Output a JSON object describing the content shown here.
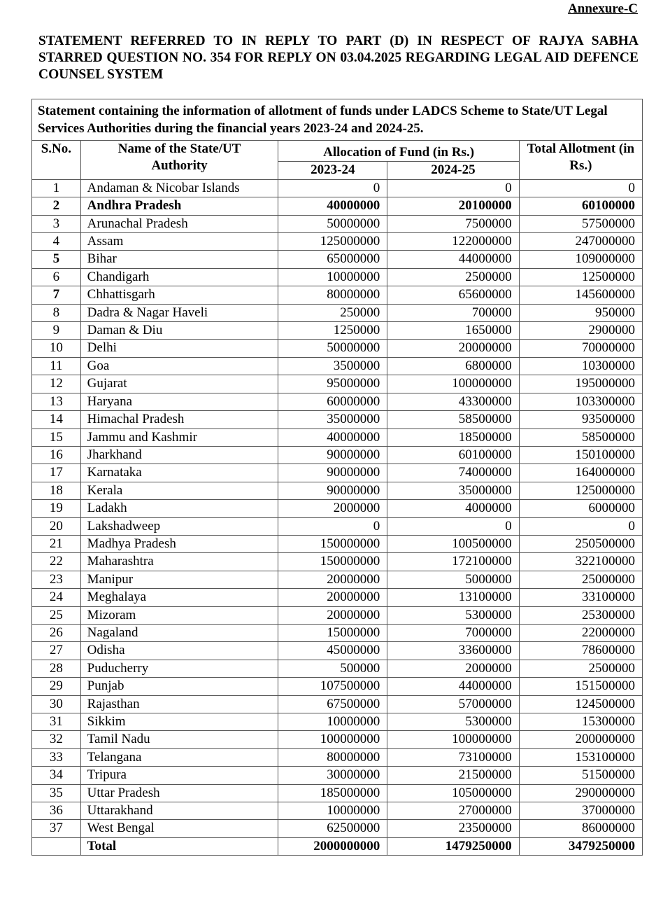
{
  "annexure": "Annexure-C",
  "title": "STATEMENT REFERRED TO IN REPLY TO PART (D) IN RESPECT OF RAJYA SABHA STARRED QUESTION NO. 354 FOR REPLY ON 03.04.2025 REGARDING LEGAL AID DEFENCE COUNSEL SYSTEM",
  "table": {
    "caption": "Statement containing the information of allotment of funds under LADCS Scheme to State/UT Legal Services Authorities during the financial years 2023-24 and 2024-25.",
    "headers": {
      "sno": "S.No.",
      "name": "Name of the State/UT Authority",
      "allocation": "Allocation of Fund (in Rs.)",
      "y1": "2023-24",
      "y2": "2024-25",
      "total": "Total Allotment (in Rs.)"
    },
    "rows": [
      [
        "1",
        "Andaman & Nicobar Islands",
        "0",
        "0",
        "0"
      ],
      [
        "2",
        "Andhra Pradesh",
        "40000000",
        "20100000",
        "60100000"
      ],
      [
        "3",
        "Arunachal Pradesh",
        "50000000",
        "7500000",
        "57500000"
      ],
      [
        "4",
        "Assam",
        "125000000",
        "122000000",
        "247000000"
      ],
      [
        "5",
        "Bihar",
        "65000000",
        "44000000",
        "109000000"
      ],
      [
        "6",
        "Chandigarh",
        "10000000",
        "2500000",
        "12500000"
      ],
      [
        "7",
        "Chhattisgarh",
        "80000000",
        "65600000",
        "145600000"
      ],
      [
        "8",
        "Dadra & Nagar Haveli",
        "250000",
        "700000",
        "950000"
      ],
      [
        "9",
        "Daman & Diu",
        "1250000",
        "1650000",
        "2900000"
      ],
      [
        "10",
        "Delhi",
        "50000000",
        "20000000",
        "70000000"
      ],
      [
        "11",
        "Goa",
        "3500000",
        "6800000",
        "10300000"
      ],
      [
        "12",
        "Gujarat",
        "95000000",
        "100000000",
        "195000000"
      ],
      [
        "13",
        "Haryana",
        "60000000",
        "43300000",
        "103300000"
      ],
      [
        "14",
        "Himachal Pradesh",
        "35000000",
        "58500000",
        "93500000"
      ],
      [
        "15",
        "Jammu and Kashmir",
        "40000000",
        "18500000",
        "58500000"
      ],
      [
        "16",
        "Jharkhand",
        "90000000",
        "60100000",
        "150100000"
      ],
      [
        "17",
        "Karnataka",
        "90000000",
        "74000000",
        "164000000"
      ],
      [
        "18",
        "Kerala",
        "90000000",
        "35000000",
        "125000000"
      ],
      [
        "19",
        "Ladakh",
        "2000000",
        "4000000",
        "6000000"
      ],
      [
        "20",
        "Lakshadweep",
        "0",
        "0",
        "0"
      ],
      [
        "21",
        "Madhya Pradesh",
        "150000000",
        "100500000",
        "250500000"
      ],
      [
        "22",
        "Maharashtra",
        "150000000",
        "172100000",
        "322100000"
      ],
      [
        "23",
        "Manipur",
        "20000000",
        "5000000",
        "25000000"
      ],
      [
        "24",
        "Meghalaya",
        "20000000",
        "13100000",
        "33100000"
      ],
      [
        "25",
        "Mizoram",
        "20000000",
        "5300000",
        "25300000"
      ],
      [
        "26",
        "Nagaland",
        "15000000",
        "7000000",
        "22000000"
      ],
      [
        "27",
        "Odisha",
        "45000000",
        "33600000",
        "78600000"
      ],
      [
        "28",
        "Puducherry",
        "500000",
        "2000000",
        "2500000"
      ],
      [
        "29",
        "Punjab",
        "107500000",
        "44000000",
        "151500000"
      ],
      [
        "30",
        "Rajasthan",
        "67500000",
        "57000000",
        "124500000"
      ],
      [
        "31",
        "Sikkim",
        "10000000",
        "5300000",
        "15300000"
      ],
      [
        "32",
        "Tamil Nadu",
        "100000000",
        "100000000",
        "200000000"
      ],
      [
        "33",
        "Telangana",
        "80000000",
        "73100000",
        "153100000"
      ],
      [
        "34",
        "Tripura",
        "30000000",
        "21500000",
        "51500000"
      ],
      [
        "35",
        "Uttar Pradesh",
        "185000000",
        "105000000",
        "290000000"
      ],
      [
        "36",
        "Uttarakhand",
        "10000000",
        "27000000",
        "37000000"
      ],
      [
        "37",
        "West Bengal",
        "62500000",
        "23500000",
        "86000000"
      ]
    ],
    "total": {
      "label": "Total",
      "y1": "2000000000",
      "y2": "1479250000",
      "total": "3479250000"
    }
  }
}
